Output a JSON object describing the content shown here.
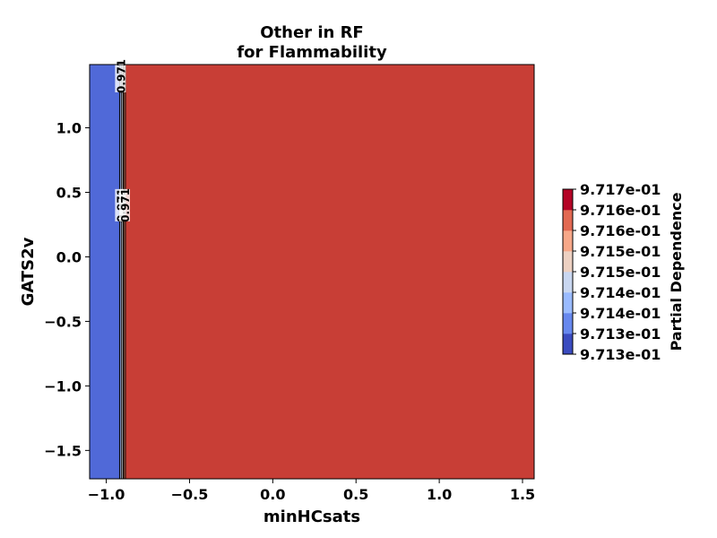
{
  "chart_data": {
    "type": "heatmap",
    "title_lines": [
      "Other in RF",
      "for Flammability"
    ],
    "xlabel": "minHCsats",
    "ylabel": "GATS2v",
    "xlim": [
      -1.1,
      1.57
    ],
    "ylim": [
      -1.72,
      1.49
    ],
    "x_ticks": [
      -1.0,
      -0.5,
      0.0,
      0.5,
      1.0,
      1.5
    ],
    "x_tick_labels": [
      "−1.0",
      "−0.5",
      "0.0",
      "0.5",
      "1.0",
      "1.5"
    ],
    "y_ticks": [
      -1.5,
      -1.0,
      -0.5,
      0.0,
      0.5,
      1.0
    ],
    "y_tick_labels": [
      "−1.5",
      "−1.0",
      "−0.5",
      "0.0",
      "0.5",
      "1.0"
    ],
    "contour_bands": [
      {
        "x_from": -1.1,
        "x_to": -0.92,
        "color": "#5069d8"
      },
      {
        "x_from": -0.92,
        "x_to": -0.91,
        "color": "#9bb5f5"
      },
      {
        "x_from": -0.91,
        "x_to": -0.9,
        "color": "#dfe2ea"
      },
      {
        "x_from": -0.9,
        "x_to": -0.895,
        "color": "#f2c2a9"
      },
      {
        "x_from": -0.895,
        "x_to": -0.885,
        "color": "#e27d5f"
      },
      {
        "x_from": -0.885,
        "x_to": 1.57,
        "color": "#c83e36"
      }
    ],
    "contour_lines_x": [
      -0.92,
      -0.91,
      -0.9,
      -0.895,
      -0.885
    ],
    "contour_labels": [
      {
        "text": "0.971",
        "x": -0.915,
        "y": 1.4
      },
      {
        "text": "0.971",
        "x": -0.915,
        "y": 0.4
      },
      {
        "text": "0.971",
        "x": -0.89,
        "y": 0.4
      }
    ],
    "colorbar": {
      "label": "Partial Dependence",
      "tick_labels": [
        "9.717e-01",
        "9.716e-01",
        "9.716e-01",
        "9.715e-01",
        "9.715e-01",
        "9.714e-01",
        "9.714e-01",
        "9.713e-01",
        "9.713e-01"
      ],
      "colors": [
        "#3b4cc0",
        "#6788ee",
        "#9abbff",
        "#c9d7f0",
        "#edd1c2",
        "#f7a889",
        "#e26952",
        "#b40426"
      ]
    }
  }
}
